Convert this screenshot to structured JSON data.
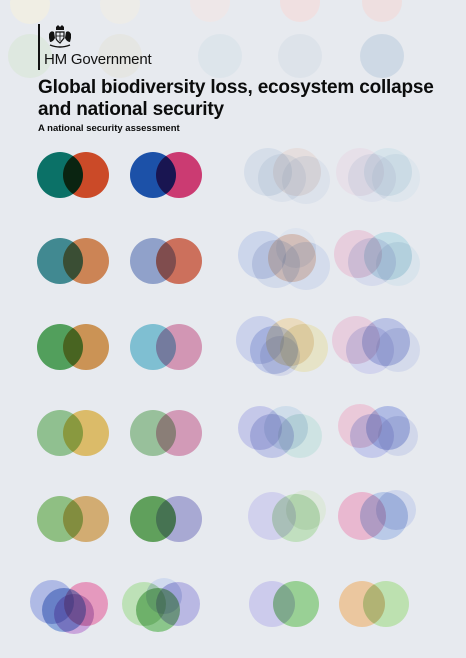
{
  "cover": {
    "organisation": "HM Government",
    "title": "Global biodiversity loss, ecosystem collapse and national security",
    "subtitle": "A national security assessment",
    "logo_icon": "royal-coat-of-arms-icon"
  },
  "colors": {
    "background": "#e7eaef",
    "text": "#0b0c0c"
  }
}
